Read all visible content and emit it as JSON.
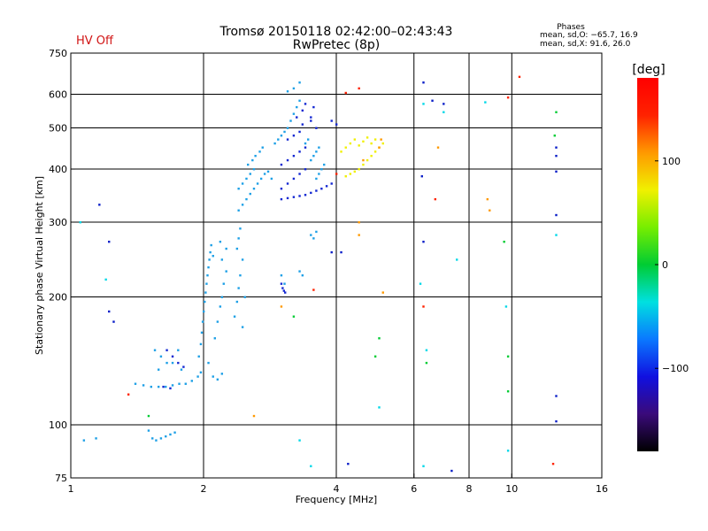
{
  "header": {
    "title_line1": "Tromsø 20150118 02:42:00–02:43:43",
    "title_line2": "RwPretec (8p)",
    "status": "HV Off",
    "status_color": "#d11414",
    "phase_title": "Phases",
    "phase_line1": "mean, sd,O: −65.7, 16.9",
    "phase_line2": "mean, sd,X:  91.6, 26.0"
  },
  "chart_data": {
    "type": "scatter",
    "xlabel": "Frequency [MHz]",
    "ylabel": "Stationary phase Virtual Height [km]",
    "x_scale": "log",
    "y_scale": "log",
    "xlim": [
      1,
      16
    ],
    "ylim": [
      75,
      750
    ],
    "x_ticks": [
      1,
      2,
      4,
      6,
      8,
      10,
      16
    ],
    "x_tick_labels": [
      "1",
      "2",
      "4",
      "6",
      "8",
      "10",
      "16"
    ],
    "y_ticks": [
      75,
      100,
      200,
      300,
      400,
      500,
      600,
      750
    ],
    "y_tick_labels": [
      "75",
      "100",
      "200",
      "300",
      "400",
      "500",
      "600",
      "750"
    ],
    "grid_x": [
      2,
      4,
      6,
      8,
      10
    ],
    "grid_y": [
      100,
      200,
      300,
      400,
      500,
      600
    ],
    "colorbar": {
      "label": "[deg]",
      "range": [
        -180,
        180
      ],
      "ticks": [
        100,
        0,
        -100
      ],
      "tick_labels": [
        "100",
        "0",
        "−100"
      ],
      "colors": [
        "#000000",
        "#3a0a7a",
        "#1010e0",
        "#0a78ff",
        "#00e0e0",
        "#00cc33",
        "#77ee00",
        "#f0f000",
        "#ff9900",
        "#ff2200",
        "#ff0000"
      ]
    },
    "series": [
      {
        "color": "#1ea0e6",
        "points": [
          [
            1.07,
            92
          ],
          [
            1.14,
            93
          ],
          [
            1.5,
            97
          ],
          [
            1.53,
            93
          ],
          [
            1.56,
            92
          ],
          [
            1.6,
            93
          ],
          [
            1.64,
            94
          ],
          [
            1.68,
            95
          ],
          [
            1.72,
            96
          ],
          [
            1.4,
            125
          ],
          [
            1.46,
            124
          ],
          [
            1.52,
            123
          ],
          [
            1.58,
            123
          ],
          [
            1.64,
            123
          ],
          [
            1.7,
            124
          ],
          [
            1.76,
            125
          ],
          [
            1.82,
            125
          ],
          [
            1.88,
            127
          ],
          [
            1.94,
            130
          ],
          [
            1.97,
            133
          ],
          [
            1.55,
            150
          ],
          [
            1.6,
            145
          ],
          [
            1.65,
            140
          ],
          [
            1.58,
            135
          ],
          [
            1.7,
            140
          ],
          [
            1.75,
            150
          ],
          [
            1.78,
            135
          ],
          [
            1.95,
            145
          ],
          [
            1.97,
            155
          ],
          [
            1.98,
            165
          ],
          [
            1.99,
            175
          ],
          [
            2.0,
            185
          ],
          [
            2.01,
            195
          ],
          [
            2.02,
            205
          ],
          [
            2.03,
            215
          ],
          [
            2.04,
            225
          ],
          [
            2.05,
            235
          ],
          [
            2.06,
            245
          ],
          [
            2.07,
            255
          ],
          [
            2.08,
            265
          ],
          [
            2.12,
            160
          ],
          [
            2.15,
            175
          ],
          [
            2.18,
            190
          ],
          [
            2.2,
            200
          ],
          [
            2.22,
            215
          ],
          [
            2.25,
            230
          ],
          [
            2.1,
            250
          ],
          [
            2.2,
            245
          ],
          [
            2.25,
            260
          ],
          [
            2.18,
            270
          ],
          [
            2.35,
            180
          ],
          [
            2.38,
            195
          ],
          [
            2.4,
            210
          ],
          [
            2.42,
            225
          ],
          [
            2.45,
            245
          ],
          [
            2.38,
            260
          ],
          [
            2.4,
            275
          ],
          [
            2.42,
            290
          ],
          [
            2.48,
            200
          ],
          [
            2.45,
            170
          ],
          [
            2.05,
            140
          ],
          [
            2.1,
            130
          ],
          [
            2.15,
            128
          ],
          [
            2.2,
            132
          ],
          [
            2.4,
            320
          ],
          [
            2.45,
            330
          ],
          [
            2.5,
            340
          ],
          [
            2.55,
            350
          ],
          [
            2.6,
            360
          ],
          [
            2.65,
            370
          ],
          [
            2.7,
            380
          ],
          [
            2.75,
            390
          ],
          [
            2.8,
            395
          ],
          [
            2.85,
            380
          ],
          [
            2.4,
            360
          ],
          [
            2.45,
            370
          ],
          [
            2.5,
            380
          ],
          [
            2.55,
            390
          ],
          [
            2.6,
            400
          ],
          [
            2.52,
            410
          ],
          [
            2.58,
            420
          ],
          [
            2.62,
            430
          ],
          [
            2.68,
            440
          ],
          [
            2.72,
            450
          ],
          [
            2.9,
            460
          ],
          [
            2.95,
            470
          ],
          [
            3.0,
            480
          ],
          [
            3.05,
            490
          ],
          [
            3.1,
            500
          ],
          [
            3.15,
            520
          ],
          [
            3.2,
            540
          ],
          [
            3.25,
            560
          ],
          [
            3.3,
            580
          ],
          [
            3.1,
            610
          ],
          [
            3.2,
            620
          ],
          [
            3.3,
            640
          ],
          [
            3.6,
            380
          ],
          [
            3.65,
            390
          ],
          [
            3.7,
            400
          ],
          [
            3.75,
            410
          ],
          [
            3.5,
            420
          ],
          [
            3.55,
            430
          ],
          [
            3.6,
            440
          ],
          [
            3.65,
            450
          ],
          [
            3.4,
            460
          ],
          [
            3.45,
            470
          ],
          [
            3.5,
            280
          ],
          [
            3.55,
            275
          ],
          [
            3.6,
            285
          ],
          [
            3.3,
            230
          ],
          [
            3.35,
            225
          ],
          [
            3.0,
            225
          ],
          [
            3.05,
            215
          ]
        ]
      },
      {
        "color": "#1428d2",
        "points": [
          [
            3.0,
            340
          ],
          [
            3.1,
            342
          ],
          [
            3.2,
            344
          ],
          [
            3.3,
            346
          ],
          [
            3.4,
            348
          ],
          [
            3.5,
            352
          ],
          [
            3.6,
            356
          ],
          [
            3.7,
            360
          ],
          [
            3.8,
            365
          ],
          [
            3.9,
            370
          ],
          [
            3.0,
            360
          ],
          [
            3.1,
            370
          ],
          [
            3.2,
            380
          ],
          [
            3.3,
            390
          ],
          [
            3.4,
            400
          ],
          [
            3.0,
            410
          ],
          [
            3.1,
            420
          ],
          [
            3.2,
            430
          ],
          [
            3.3,
            440
          ],
          [
            3.4,
            450
          ],
          [
            3.1,
            470
          ],
          [
            3.2,
            480
          ],
          [
            3.3,
            490
          ],
          [
            3.35,
            510
          ],
          [
            3.25,
            530
          ],
          [
            3.35,
            550
          ],
          [
            3.4,
            570
          ],
          [
            3.5,
            520
          ],
          [
            3.6,
            500
          ],
          [
            3.0,
            215
          ],
          [
            3.02,
            210
          ],
          [
            3.04,
            207
          ],
          [
            3.06,
            205
          ],
          [
            3.5,
            530
          ],
          [
            3.55,
            560
          ],
          [
            3.9,
            520
          ],
          [
            4.0,
            510
          ],
          [
            1.65,
            150
          ],
          [
            1.7,
            145
          ],
          [
            1.75,
            140
          ],
          [
            1.8,
            137
          ],
          [
            1.62,
            123
          ],
          [
            1.68,
            122
          ]
        ]
      },
      {
        "color": "#f0f000",
        "points": [
          [
            4.2,
            385
          ],
          [
            4.3,
            390
          ],
          [
            4.4,
            395
          ],
          [
            4.5,
            400
          ],
          [
            4.6,
            410
          ],
          [
            4.7,
            420
          ],
          [
            4.8,
            430
          ],
          [
            4.9,
            440
          ],
          [
            5.0,
            450
          ],
          [
            5.1,
            460
          ],
          [
            4.1,
            440
          ],
          [
            4.2,
            450
          ],
          [
            4.3,
            460
          ],
          [
            4.4,
            470
          ],
          [
            4.5,
            455
          ],
          [
            4.6,
            465
          ],
          [
            4.7,
            475
          ],
          [
            4.8,
            460
          ],
          [
            4.9,
            470
          ]
        ]
      },
      {
        "color": "#ff9900",
        "points": [
          [
            5.0,
            450
          ],
          [
            5.05,
            470
          ],
          [
            4.6,
            420
          ],
          [
            4.5,
            300
          ],
          [
            4.5,
            280
          ],
          [
            5.1,
            205
          ],
          [
            3.0,
            190
          ],
          [
            2.6,
            105
          ],
          [
            6.8,
            450
          ],
          [
            8.9,
            320
          ],
          [
            8.8,
            340
          ]
        ]
      },
      {
        "color": "#ff2200",
        "points": [
          [
            4.2,
            605
          ],
          [
            4.5,
            620
          ],
          [
            4.0,
            390
          ],
          [
            6.3,
            190
          ],
          [
            6.7,
            340
          ],
          [
            9.8,
            590
          ],
          [
            10.4,
            660
          ],
          [
            12.4,
            81
          ],
          [
            1.35,
            118
          ],
          [
            3.55,
            208
          ]
        ]
      },
      {
        "color": "#0a1ec8",
        "points": [
          [
            6.3,
            640
          ],
          [
            6.6,
            580
          ],
          [
            7.0,
            570
          ],
          [
            7.3,
            78
          ],
          [
            6.3,
            270
          ],
          [
            6.25,
            385
          ],
          [
            12.6,
            450
          ],
          [
            12.6,
            430
          ],
          [
            12.6,
            395
          ],
          [
            12.6,
            312
          ],
          [
            12.6,
            117
          ],
          [
            12.6,
            102
          ],
          [
            4.25,
            81
          ],
          [
            4.1,
            255
          ],
          [
            3.9,
            255
          ],
          [
            1.25,
            175
          ],
          [
            1.22,
            185
          ],
          [
            1.22,
            270
          ],
          [
            1.16,
            330
          ]
        ]
      },
      {
        "color": "#00cc33",
        "points": [
          [
            1.5,
            105
          ],
          [
            3.2,
            180
          ],
          [
            5.0,
            160
          ],
          [
            4.9,
            145
          ],
          [
            9.8,
            120
          ],
          [
            9.8,
            145
          ],
          [
            9.6,
            270
          ],
          [
            12.6,
            545
          ],
          [
            12.5,
            480
          ],
          [
            6.4,
            140
          ]
        ]
      },
      {
        "color": "#00d8e8",
        "points": [
          [
            3.5,
            80
          ],
          [
            3.3,
            92
          ],
          [
            5.0,
            110
          ],
          [
            6.3,
            80
          ],
          [
            6.4,
            150
          ],
          [
            6.2,
            215
          ],
          [
            7.5,
            245
          ],
          [
            9.7,
            190
          ],
          [
            9.8,
            87
          ],
          [
            12.6,
            280
          ],
          [
            1.05,
            300
          ],
          [
            1.2,
            220
          ],
          [
            6.3,
            570
          ],
          [
            7.0,
            545
          ],
          [
            8.7,
            575
          ]
        ]
      }
    ]
  }
}
